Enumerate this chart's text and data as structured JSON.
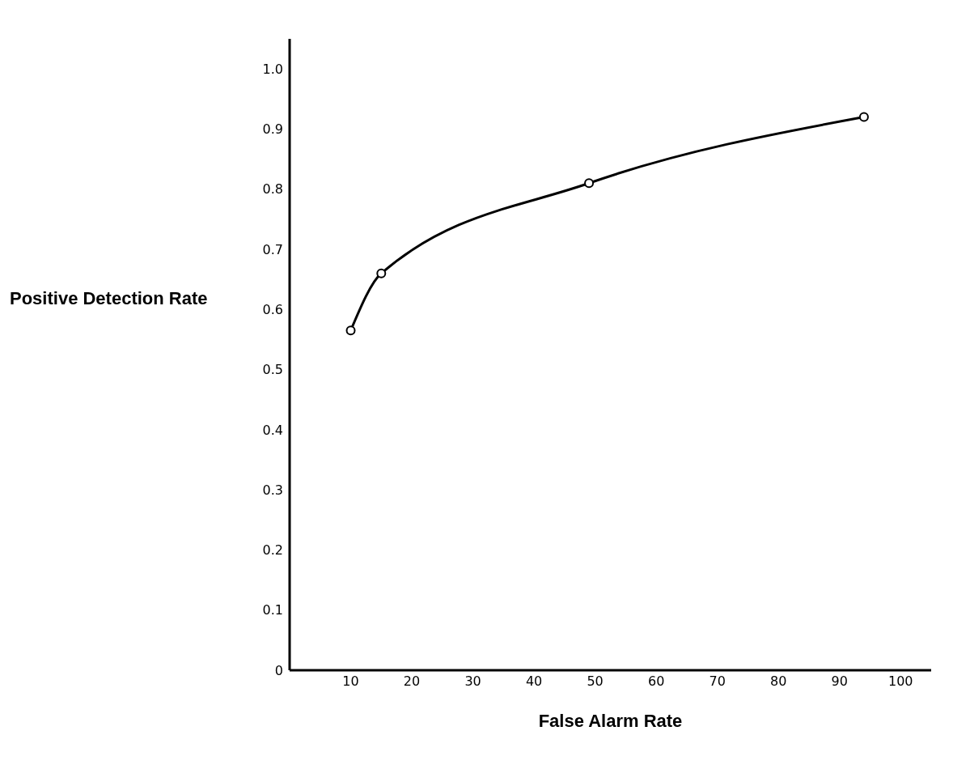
{
  "chart_data": {
    "type": "line",
    "xlabel": "False Alarm Rate",
    "ylabel": "Positive Detection Rate",
    "x": [
      10,
      15,
      49,
      94
    ],
    "series": [
      {
        "color": "#000000",
        "values": [
          0.565,
          0.66,
          0.81,
          0.92
        ]
      }
    ],
    "marker": "circle",
    "line_style": "solid",
    "grid": false,
    "legend": false,
    "xlim": [
      0,
      105
    ],
    "xticks": [
      10,
      20,
      30,
      40,
      50,
      60,
      70,
      80,
      90,
      100
    ],
    "ylim": [
      0,
      1.05
    ],
    "yticks": [
      0,
      0.1,
      0.2,
      0.3,
      0.4,
      0.5,
      0.6,
      0.7,
      0.8,
      0.9,
      {
        "value": 1,
        "label": "1.0"
      }
    ]
  }
}
